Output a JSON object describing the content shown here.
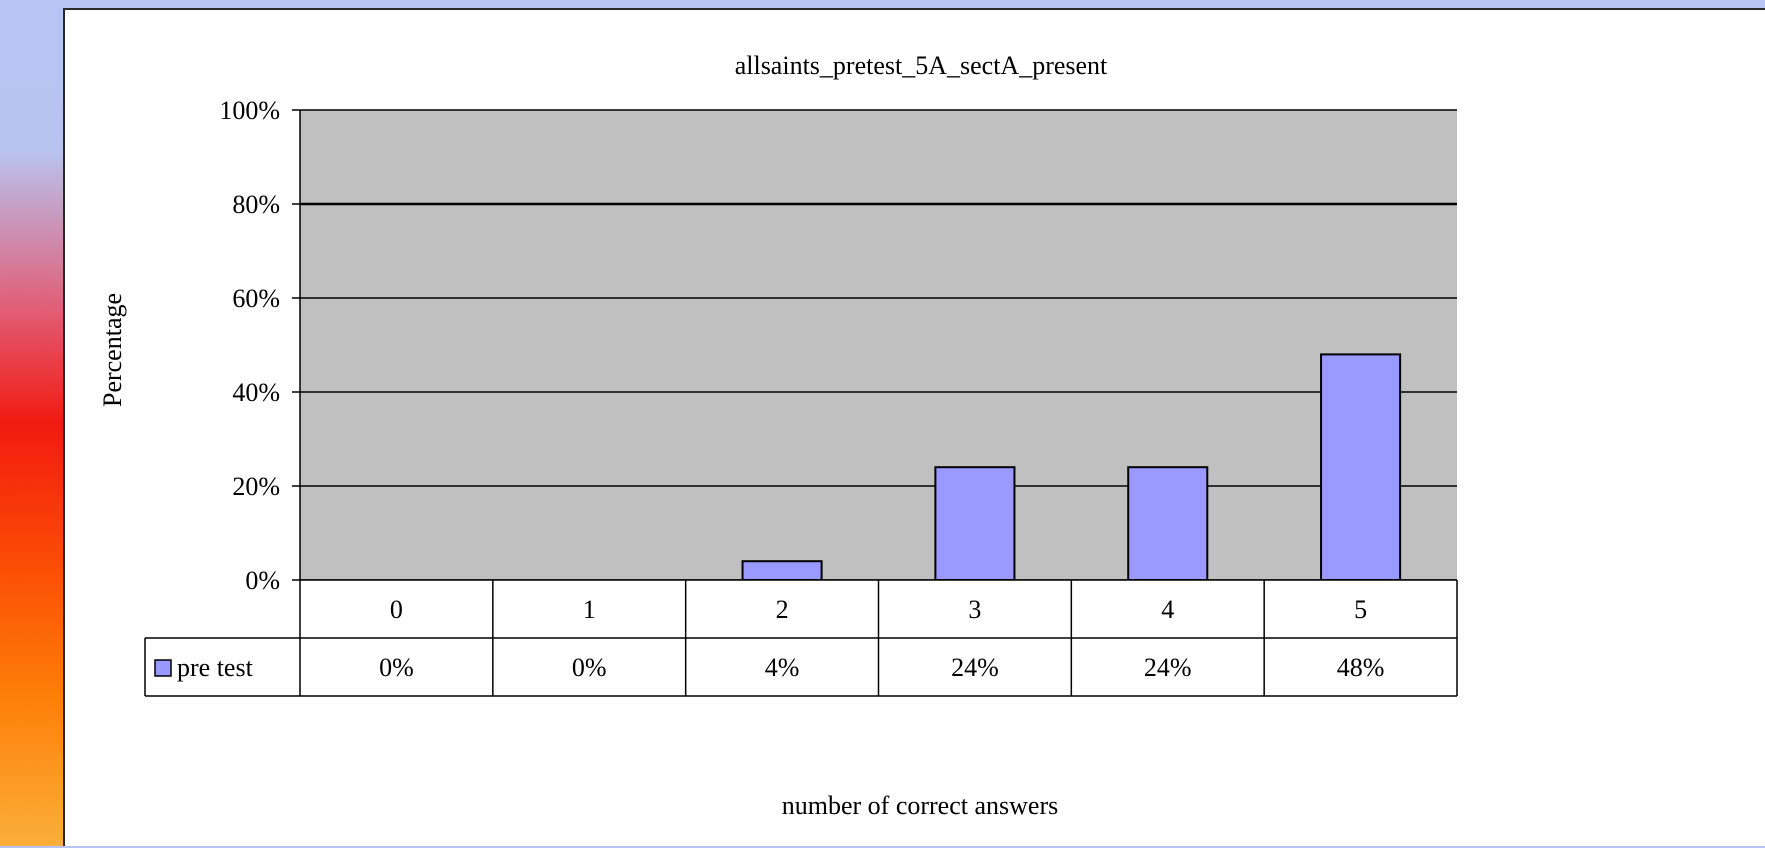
{
  "chart_data": {
    "type": "bar",
    "title": "allsaints_pretest_5A_sectA_present",
    "xlabel": "number of correct answers",
    "ylabel": "Percentage",
    "categories": [
      "0",
      "1",
      "2",
      "3",
      "4",
      "5"
    ],
    "ylim": [
      0,
      100
    ],
    "yticks": [
      "0%",
      "20%",
      "40%",
      "60%",
      "80%",
      "100%"
    ],
    "series": [
      {
        "name": "pre test",
        "values": [
          0,
          0,
          4,
          24,
          24,
          48
        ],
        "value_labels": [
          "0%",
          "0%",
          "4%",
          "24%",
          "24%",
          "48%"
        ],
        "color": "#9999ff"
      }
    ],
    "grid": true,
    "legend": "data-table-left",
    "plot_background": "#c0c0c0"
  }
}
